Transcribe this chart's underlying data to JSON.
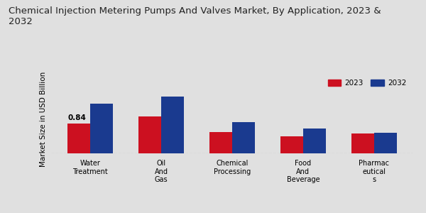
{
  "title": "Chemical Injection Metering Pumps And Valves Market, By Application, 2023 &\n2032",
  "ylabel": "Market Size in USD Billion",
  "categories": [
    "Water\nTreatment",
    "Oil\nAnd\nGas",
    "Chemical\nProcessing",
    "Food\nAnd\nBeverage",
    "Pharmac\neutical\ns"
  ],
  "values_2023": [
    0.84,
    1.02,
    0.6,
    0.48,
    0.55
  ],
  "values_2032": [
    1.38,
    1.58,
    0.88,
    0.7,
    0.57
  ],
  "color_2023": "#cc1020",
  "color_2032": "#1a3a8f",
  "annotation_text": "0.84",
  "background_color": "#e0e0e0",
  "legend_labels": [
    "2023",
    "2032"
  ],
  "bar_width": 0.32,
  "title_fontsize": 9.5,
  "label_fontsize": 7.5,
  "tick_fontsize": 7,
  "ylim": [
    0,
    1.9
  ]
}
